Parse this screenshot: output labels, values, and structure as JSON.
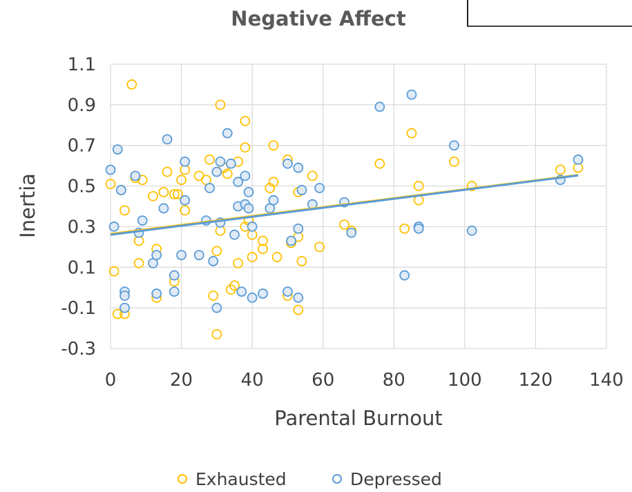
{
  "chart_data": {
    "type": "scatter",
    "title": "Negative Affect",
    "xlabel": "Parental Burnout",
    "ylabel": "Inertia",
    "xlim": [
      0,
      140
    ],
    "ylim": [
      -0.3,
      1.1
    ],
    "x_ticks": [
      "0",
      "20",
      "40",
      "60",
      "80",
      "100",
      "120",
      "140"
    ],
    "y_ticks": [
      "1.1",
      "0.9",
      "0.7",
      "0.5",
      "0.3",
      "0.1",
      "-0.1",
      "-0.3"
    ],
    "grid": true,
    "legend_position": "bottom",
    "series": [
      {
        "name": "Exhausted",
        "color": "#FFC000",
        "points": [
          [
            0,
            0.51
          ],
          [
            1,
            0.08
          ],
          [
            2,
            -0.13
          ],
          [
            3,
            0.48
          ],
          [
            4,
            0.38
          ],
          [
            4,
            -0.13
          ],
          [
            6,
            1.0
          ],
          [
            7,
            0.54
          ],
          [
            8,
            0.23
          ],
          [
            8,
            0.12
          ],
          [
            9,
            0.53
          ],
          [
            12,
            0.45
          ],
          [
            13,
            0.19
          ],
          [
            13,
            -0.05
          ],
          [
            15,
            0.47
          ],
          [
            16,
            0.57
          ],
          [
            18,
            0.46
          ],
          [
            18,
            0.03
          ],
          [
            19,
            0.46
          ],
          [
            20,
            0.53
          ],
          [
            21,
            0.58
          ],
          [
            21,
            0.38
          ],
          [
            25,
            0.55
          ],
          [
            27,
            0.53
          ],
          [
            28,
            0.63
          ],
          [
            29,
            -0.04
          ],
          [
            30,
            0.18
          ],
          [
            30,
            -0.23
          ],
          [
            31,
            0.9
          ],
          [
            31,
            0.28
          ],
          [
            32,
            0.59
          ],
          [
            33,
            0.56
          ],
          [
            34,
            -0.01
          ],
          [
            35,
            0.01
          ],
          [
            36,
            0.62
          ],
          [
            36,
            0.12
          ],
          [
            38,
            0.82
          ],
          [
            38,
            0.69
          ],
          [
            38,
            0.3
          ],
          [
            39,
            0.33
          ],
          [
            40,
            0.26
          ],
          [
            40,
            0.15
          ],
          [
            43,
            0.23
          ],
          [
            43,
            0.19
          ],
          [
            45,
            0.49
          ],
          [
            46,
            0.7
          ],
          [
            46,
            0.52
          ],
          [
            47,
            0.15
          ],
          [
            50,
            0.63
          ],
          [
            50,
            -0.04
          ],
          [
            51,
            0.22
          ],
          [
            53,
            0.47
          ],
          [
            53,
            0.25
          ],
          [
            53,
            -0.11
          ],
          [
            54,
            0.13
          ],
          [
            57,
            0.55
          ],
          [
            59,
            0.2
          ],
          [
            66,
            0.31
          ],
          [
            68,
            0.28
          ],
          [
            76,
            0.61
          ],
          [
            83,
            0.29
          ],
          [
            85,
            0.76
          ],
          [
            87,
            0.5
          ],
          [
            87,
            0.43
          ],
          [
            97,
            0.62
          ],
          [
            102,
            0.5
          ],
          [
            127,
            0.58
          ],
          [
            132,
            0.59
          ]
        ],
        "trend": [
          [
            0,
            0.265
          ],
          [
            132,
            0.555
          ]
        ]
      },
      {
        "name": "Depressed",
        "color": "#5B9BD5",
        "points": [
          [
            0,
            0.58
          ],
          [
            1,
            0.3
          ],
          [
            2,
            0.68
          ],
          [
            3,
            0.48
          ],
          [
            4,
            -0.02
          ],
          [
            4,
            -0.04
          ],
          [
            4,
            -0.1
          ],
          [
            7,
            0.55
          ],
          [
            8,
            0.27
          ],
          [
            9,
            0.33
          ],
          [
            12,
            0.12
          ],
          [
            13,
            0.16
          ],
          [
            13,
            -0.03
          ],
          [
            15,
            0.39
          ],
          [
            16,
            0.73
          ],
          [
            18,
            0.06
          ],
          [
            18,
            -0.02
          ],
          [
            20,
            0.16
          ],
          [
            21,
            0.62
          ],
          [
            21,
            0.43
          ],
          [
            25,
            0.16
          ],
          [
            27,
            0.33
          ],
          [
            28,
            0.49
          ],
          [
            29,
            0.13
          ],
          [
            30,
            0.57
          ],
          [
            30,
            -0.1
          ],
          [
            31,
            0.62
          ],
          [
            31,
            0.32
          ],
          [
            33,
            0.76
          ],
          [
            34,
            0.61
          ],
          [
            35,
            0.26
          ],
          [
            36,
            0.52
          ],
          [
            36,
            0.4
          ],
          [
            37,
            -0.02
          ],
          [
            38,
            0.55
          ],
          [
            38,
            0.41
          ],
          [
            39,
            0.47
          ],
          [
            39,
            0.39
          ],
          [
            40,
            0.3
          ],
          [
            40,
            -0.05
          ],
          [
            43,
            -0.03
          ],
          [
            45,
            0.39
          ],
          [
            46,
            0.43
          ],
          [
            50,
            0.61
          ],
          [
            50,
            -0.02
          ],
          [
            51,
            0.23
          ],
          [
            53,
            0.59
          ],
          [
            53,
            0.29
          ],
          [
            53,
            -0.05
          ],
          [
            54,
            0.48
          ],
          [
            57,
            0.41
          ],
          [
            59,
            0.49
          ],
          [
            66,
            0.42
          ],
          [
            68,
            0.27
          ],
          [
            76,
            0.89
          ],
          [
            83,
            0.06
          ],
          [
            85,
            0.95
          ],
          [
            87,
            0.3
          ],
          [
            87,
            0.29
          ],
          [
            97,
            0.7
          ],
          [
            102,
            0.28
          ],
          [
            127,
            0.53
          ],
          [
            132,
            0.63
          ]
        ],
        "trend": [
          [
            0,
            0.26
          ],
          [
            132,
            0.552
          ]
        ]
      }
    ]
  }
}
